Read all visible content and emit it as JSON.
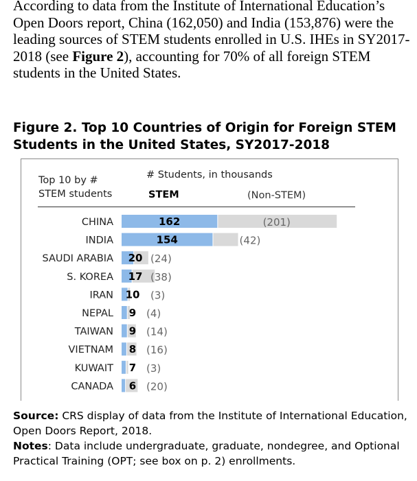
{
  "paragraph": {
    "text_1": "According to data from the Institute of International Education’s Open Doors report, China (162,050) and India (153,876) were the leading sources of STEM students enrolled in U.S. IHEs in SY2017-2018 (see ",
    "figure_ref": "Figure 2",
    "text_2": "), accounting for 70% of all foreign STEM students in the United States."
  },
  "figure_title": "Figure 2. Top 10 Countries of Origin for Foreign STEM Students in the United States, SY2017-2018",
  "chart_data": {
    "type": "bar",
    "orientation": "horizontal",
    "stacked": true,
    "row_header_line1": "Top 10 by #",
    "row_header_line2": "STEM students",
    "units_label": "# Students, in thousands",
    "categories": [
      "CHINA",
      "INDIA",
      "SAUDI ARABIA",
      "S. KOREA",
      "IRAN",
      "NEPAL",
      "TAIWAN",
      "VIETNAM",
      "KUWAIT",
      "CANADA"
    ],
    "series": [
      {
        "name": "STEM",
        "color": "#8db9e8",
        "values": [
          162,
          154,
          20,
          17,
          10,
          9,
          9,
          8,
          7,
          6
        ]
      },
      {
        "name": "(Non-STEM)",
        "color": "#d9d9d9",
        "values": [
          201,
          42,
          24,
          38,
          3,
          4,
          14,
          16,
          3,
          20
        ]
      }
    ],
    "grid": false
  },
  "source": {
    "label": "Source:",
    "text": " CRS display of data from the Institute of International Education, Open Doors Report, 2018."
  },
  "notes": {
    "label": "Notes",
    "text": ": Data include undergraduate, graduate, nondegree, and Optional Practical Training (OPT; see box on p. 2) enrollments."
  }
}
